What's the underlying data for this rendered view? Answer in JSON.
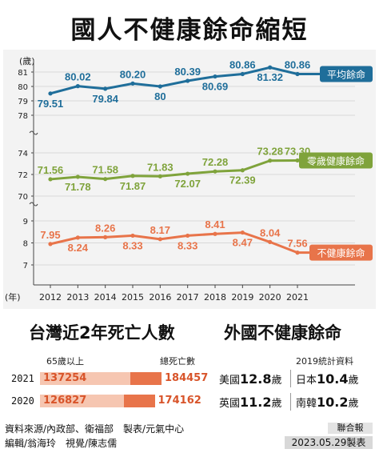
{
  "title": "國人不健康餘命縮短",
  "chart_data": {
    "type": "line",
    "unit_top": "(歲)",
    "unit_bottom": "(年)",
    "x": [
      "2012",
      "2013",
      "2014",
      "2015",
      "2016",
      "2017",
      "2018",
      "2019",
      "2020",
      "2021"
    ],
    "series": [
      {
        "name": "平均餘命",
        "color": "#1f6e9a",
        "values": [
          79.51,
          80.02,
          79.84,
          80.2,
          80,
          80.39,
          80.69,
          80.86,
          81.32,
          80.86
        ],
        "label_pos": [
          "below",
          "above",
          "below",
          "above",
          "below",
          "above",
          "below",
          "above",
          "below",
          "above"
        ],
        "labels": [
          "79.51",
          "80.02",
          "79.84",
          "80.20",
          "80",
          "80.39",
          "80.69",
          "80.86",
          "81.32",
          "80.86"
        ],
        "ylim": [
          78,
          81
        ],
        "ticks": [
          "78",
          "79",
          "80",
          "81"
        ]
      },
      {
        "name": "零歲健康餘命",
        "color": "#7fa33b",
        "values": [
          71.56,
          71.78,
          71.58,
          71.87,
          71.83,
          72.07,
          72.28,
          72.39,
          73.28,
          73.3
        ],
        "label_pos": [
          "above",
          "below",
          "above",
          "below",
          "above",
          "below",
          "above",
          "below",
          "above",
          "above"
        ],
        "labels": [
          "71.56",
          "71.78",
          "71.58",
          "71.87",
          "71.83",
          "72.07",
          "72.28",
          "72.39",
          "73.28",
          "73.30"
        ],
        "ylim": [
          70,
          74
        ],
        "ticks": [
          "70",
          "72",
          "74"
        ]
      },
      {
        "name": "不健康餘命",
        "color": "#e8744a",
        "values": [
          7.95,
          8.24,
          8.26,
          8.33,
          8.17,
          8.33,
          8.41,
          8.47,
          8.04,
          7.56
        ],
        "label_pos": [
          "above",
          "below",
          "above",
          "below",
          "above",
          "below",
          "above",
          "below",
          "above",
          "above"
        ],
        "labels": [
          "7.95",
          "8.24",
          "8.26",
          "8.33",
          "8.17",
          "8.33",
          "8.41",
          "8.47",
          "8.04",
          "7.56"
        ],
        "ylim": [
          7,
          9
        ],
        "ticks": [
          "7",
          "8",
          "9"
        ]
      }
    ]
  },
  "deaths": {
    "title": "台灣近2年死亡人數",
    "col_left": "65歲以上",
    "col_right": "總死亡數",
    "rows": [
      {
        "year": "2021",
        "over65": "137254",
        "total": "184457",
        "over65_val": 137254,
        "total_val": 184457
      },
      {
        "year": "2020",
        "over65": "126827",
        "total": "174162",
        "over65_val": 126827,
        "total_val": 174162
      }
    ]
  },
  "foreign": {
    "title": "外國不健康餘命",
    "note": "2019統計資料",
    "items": [
      {
        "country": "美國",
        "value": "12.8",
        "unit": "歲"
      },
      {
        "country": "日本",
        "value": "10.4",
        "unit": "歲"
      },
      {
        "country": "英國",
        "value": "11.2",
        "unit": "歲"
      },
      {
        "country": "南韓",
        "value": "10.2",
        "unit": "歲"
      }
    ]
  },
  "footer": {
    "source": "資料來源/內政部、衛福部　製表/元氣中心",
    "editors": "編輯/翁海玲　視覺/陳志儒",
    "brand": "聯合報",
    "date": "2023.05.29製表"
  }
}
